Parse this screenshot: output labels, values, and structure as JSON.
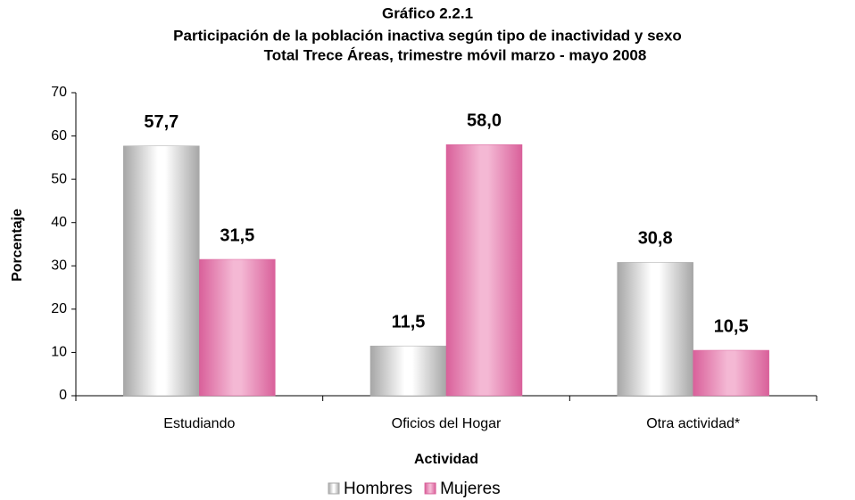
{
  "chart_data": {
    "type": "bar",
    "title": "Gráfico 2.2.1",
    "subtitle": [
      "Participación de la población inactiva según tipo de inactividad y sexo",
      "Total Trece Áreas, trimestre móvil marzo - mayo 2008"
    ],
    "x_label": "Actividad",
    "y_label": "Porcentaje",
    "categories": [
      "Estudiando",
      "Oficios del Hogar",
      "Otra actividad*"
    ],
    "series": [
      {
        "name": "Hombres",
        "color": "#a6a6a6",
        "values": [
          57.7,
          11.5,
          30.8
        ],
        "value_labels": [
          "57,7",
          "11,5",
          "30,8"
        ]
      },
      {
        "name": "Mujeres",
        "color": "#d9609a",
        "values": [
          31.5,
          58.0,
          10.5
        ],
        "value_labels": [
          "31,5",
          "58,0",
          "10,5"
        ]
      }
    ],
    "ylim": [
      0,
      70
    ],
    "yticks": [
      0,
      10,
      20,
      30,
      40,
      50,
      60,
      70
    ],
    "legend": "bottom"
  }
}
